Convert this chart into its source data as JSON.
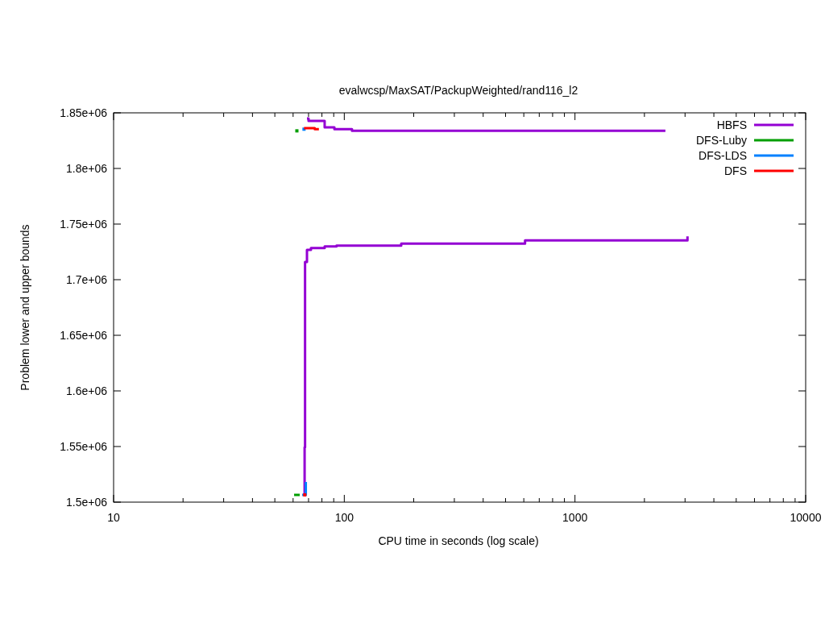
{
  "chart_data": {
    "type": "step",
    "title": "evalwcsp/MaxSAT/PackupWeighted/rand116_l2",
    "xlabel": "CPU time in seconds (log scale)",
    "ylabel": "Problem lower and upper bounds",
    "log": "x",
    "grid": false,
    "legend": "top right",
    "xlim": [
      10,
      10000
    ],
    "xticks": [
      10,
      {
        "value": 20,
        "label": null
      },
      {
        "value": 30,
        "label": null
      },
      {
        "value": 40,
        "label": null
      },
      {
        "value": 50,
        "label": null
      },
      {
        "value": 60,
        "label": null
      },
      {
        "value": 70,
        "label": null
      },
      {
        "value": 80,
        "label": null
      },
      {
        "value": 90,
        "label": null
      },
      100,
      {
        "value": 200,
        "label": null
      },
      {
        "value": 300,
        "label": null
      },
      {
        "value": 400,
        "label": null
      },
      {
        "value": 500,
        "label": null
      },
      {
        "value": 600,
        "label": null
      },
      {
        "value": 700,
        "label": null
      },
      {
        "value": 800,
        "label": null
      },
      {
        "value": 900,
        "label": null
      },
      1000,
      {
        "value": 2000,
        "label": null
      },
      {
        "value": 3000,
        "label": null
      },
      {
        "value": 4000,
        "label": null
      },
      {
        "value": 5000,
        "label": null
      },
      {
        "value": 6000,
        "label": null
      },
      {
        "value": 7000,
        "label": null
      },
      {
        "value": 8000,
        "label": null
      },
      {
        "value": 9000,
        "label": null
      },
      10000
    ],
    "ylim": [
      1500000,
      1850000
    ],
    "yticks": [
      {
        "value": 1500000,
        "label": "1.5e+06"
      },
      {
        "value": 1550000,
        "label": "1.55e+06"
      },
      {
        "value": 1600000,
        "label": "1.6e+06"
      },
      {
        "value": 1650000,
        "label": "1.65e+06"
      },
      {
        "value": 1700000,
        "label": "1.7e+06"
      },
      {
        "value": 1750000,
        "label": "1.75e+06"
      },
      {
        "value": 1800000,
        "label": "1.8e+06"
      },
      {
        "value": 1850000,
        "label": "1.85e+06"
      }
    ],
    "series": [
      {
        "name": "HBFS",
        "color": "#9400d3",
        "x": [
          68.9,
          70.0,
          82.2,
          90.6,
          108,
          2466
        ],
        "values": [
          1844900,
          1842800,
          1837000,
          1835300,
          1833800,
          1833800
        ]
      },
      {
        "color": "#9400d3",
        "x": [
          66.7,
          67.3,
          67.6,
          68.9,
          71.7,
          82.2,
          92.5,
          176.5,
          607.6,
          3074
        ],
        "values": [
          1506500,
          1549300,
          1715900,
          1726800,
          1728500,
          1729900,
          1730600,
          1732400,
          1735300,
          1738900
        ]
      },
      {
        "name": "DFS-Luby",
        "color": "#009e00",
        "type": "scatter",
        "marker": "square",
        "x": [
          62.3
        ],
        "values": [
          1833800
        ]
      },
      {
        "color": "#009e00",
        "x": [
          60.6,
          64.1
        ],
        "values": [
          1506500,
          1506500
        ]
      },
      {
        "name": "DFS-LDS",
        "color": "#0080ff",
        "type": "scatter",
        "marker": "square",
        "x": [
          66.9
        ],
        "values": [
          1835300
        ]
      },
      {
        "color": "#0080ff",
        "x": [
          65.7,
          68.1
        ],
        "values": [
          1506500,
          1518100
        ]
      },
      {
        "name": "DFS",
        "color": "#ff0000",
        "x": [
          66.9,
          74.5,
          77.6
        ],
        "values": [
          1836200,
          1835300,
          1835300
        ]
      },
      {
        "color": "#ff0000",
        "type": "scatter",
        "marker": "square",
        "x": [
          67.4
        ],
        "values": [
          1506500
        ]
      }
    ]
  }
}
